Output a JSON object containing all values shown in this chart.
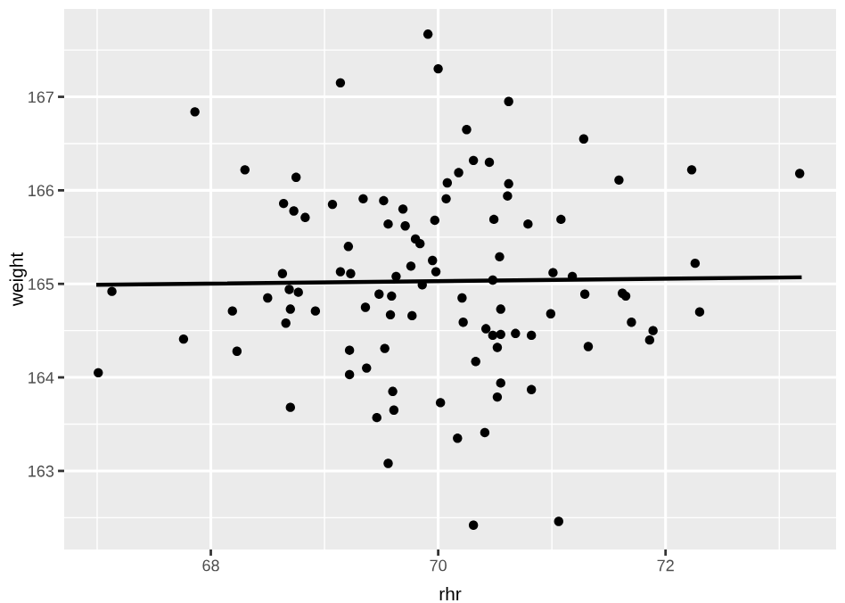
{
  "chart_data": {
    "type": "scatter",
    "xlabel": "rhr",
    "ylabel": "weight",
    "xlim": [
      66.71,
      73.5
    ],
    "ylim": [
      162.16,
      167.94
    ],
    "xticks": [
      68,
      70,
      72
    ],
    "yticks": [
      163,
      164,
      165,
      166,
      167
    ],
    "grid": true,
    "marker": "circle",
    "series": [
      {
        "color": "#000000",
        "x": [
          67.86,
          69.14,
          68.3,
          68.75,
          68.64,
          68.73,
          68.83,
          69.07,
          69.34,
          69.52,
          69.69,
          69.56,
          69.71,
          69.8,
          69.84,
          69.21,
          69.76,
          69.14,
          69.23,
          68.63,
          69.63,
          69.86,
          67.13,
          68.69,
          68.77,
          68.5,
          69.48,
          69.59,
          69.91,
          70.0,
          70.62,
          70.25,
          71.28,
          70.31,
          70.45,
          70.18,
          72.23,
          73.18,
          70.08,
          70.62,
          71.59,
          70.07,
          70.61,
          69.97,
          70.49,
          70.79,
          71.08,
          70.54,
          69.95,
          69.98,
          72.26,
          71.01,
          71.18,
          70.48,
          70.21,
          71.29,
          71.62,
          71.65,
          68.19,
          68.7,
          68.92,
          68.66,
          69.36,
          69.58,
          69.77,
          67.76,
          68.23,
          69.22,
          69.53,
          67.01,
          69.22,
          69.37,
          69.6,
          69.61,
          69.46,
          68.7,
          69.56,
          70.55,
          70.99,
          72.3,
          70.22,
          71.7,
          70.42,
          70.48,
          70.55,
          70.68,
          70.82,
          71.89,
          71.86,
          70.52,
          71.32,
          70.33,
          70.55,
          70.52,
          70.82,
          70.02,
          70.41,
          70.17,
          70.31,
          71.06
        ],
        "values": [
          166.84,
          167.15,
          166.22,
          166.14,
          165.86,
          165.78,
          165.71,
          165.85,
          165.91,
          165.89,
          165.8,
          165.64,
          165.62,
          165.48,
          165.43,
          165.4,
          165.19,
          165.13,
          165.11,
          165.11,
          165.08,
          164.99,
          164.92,
          164.94,
          164.91,
          164.85,
          164.89,
          164.87,
          167.67,
          167.3,
          166.95,
          166.65,
          166.55,
          166.32,
          166.3,
          166.19,
          166.22,
          166.18,
          166.08,
          166.07,
          166.11,
          165.91,
          165.94,
          165.68,
          165.69,
          165.64,
          165.69,
          165.29,
          165.25,
          165.13,
          165.22,
          165.12,
          165.08,
          165.04,
          164.85,
          164.89,
          164.9,
          164.87,
          164.71,
          164.73,
          164.71,
          164.58,
          164.75,
          164.67,
          164.66,
          164.41,
          164.28,
          164.29,
          164.31,
          164.05,
          164.03,
          164.1,
          163.85,
          163.65,
          163.57,
          163.68,
          163.08,
          164.73,
          164.68,
          164.7,
          164.59,
          164.59,
          164.52,
          164.45,
          164.46,
          164.47,
          164.45,
          164.5,
          164.4,
          164.32,
          164.33,
          164.17,
          163.94,
          163.79,
          163.87,
          163.73,
          163.41,
          163.35,
          162.42,
          162.46
        ]
      },
      {
        "type": "line",
        "color": "#000000",
        "marker": "none",
        "line_style": "solid",
        "x": [
          67.01,
          73.18
        ],
        "values": [
          164.99,
          165.07
        ]
      }
    ]
  }
}
